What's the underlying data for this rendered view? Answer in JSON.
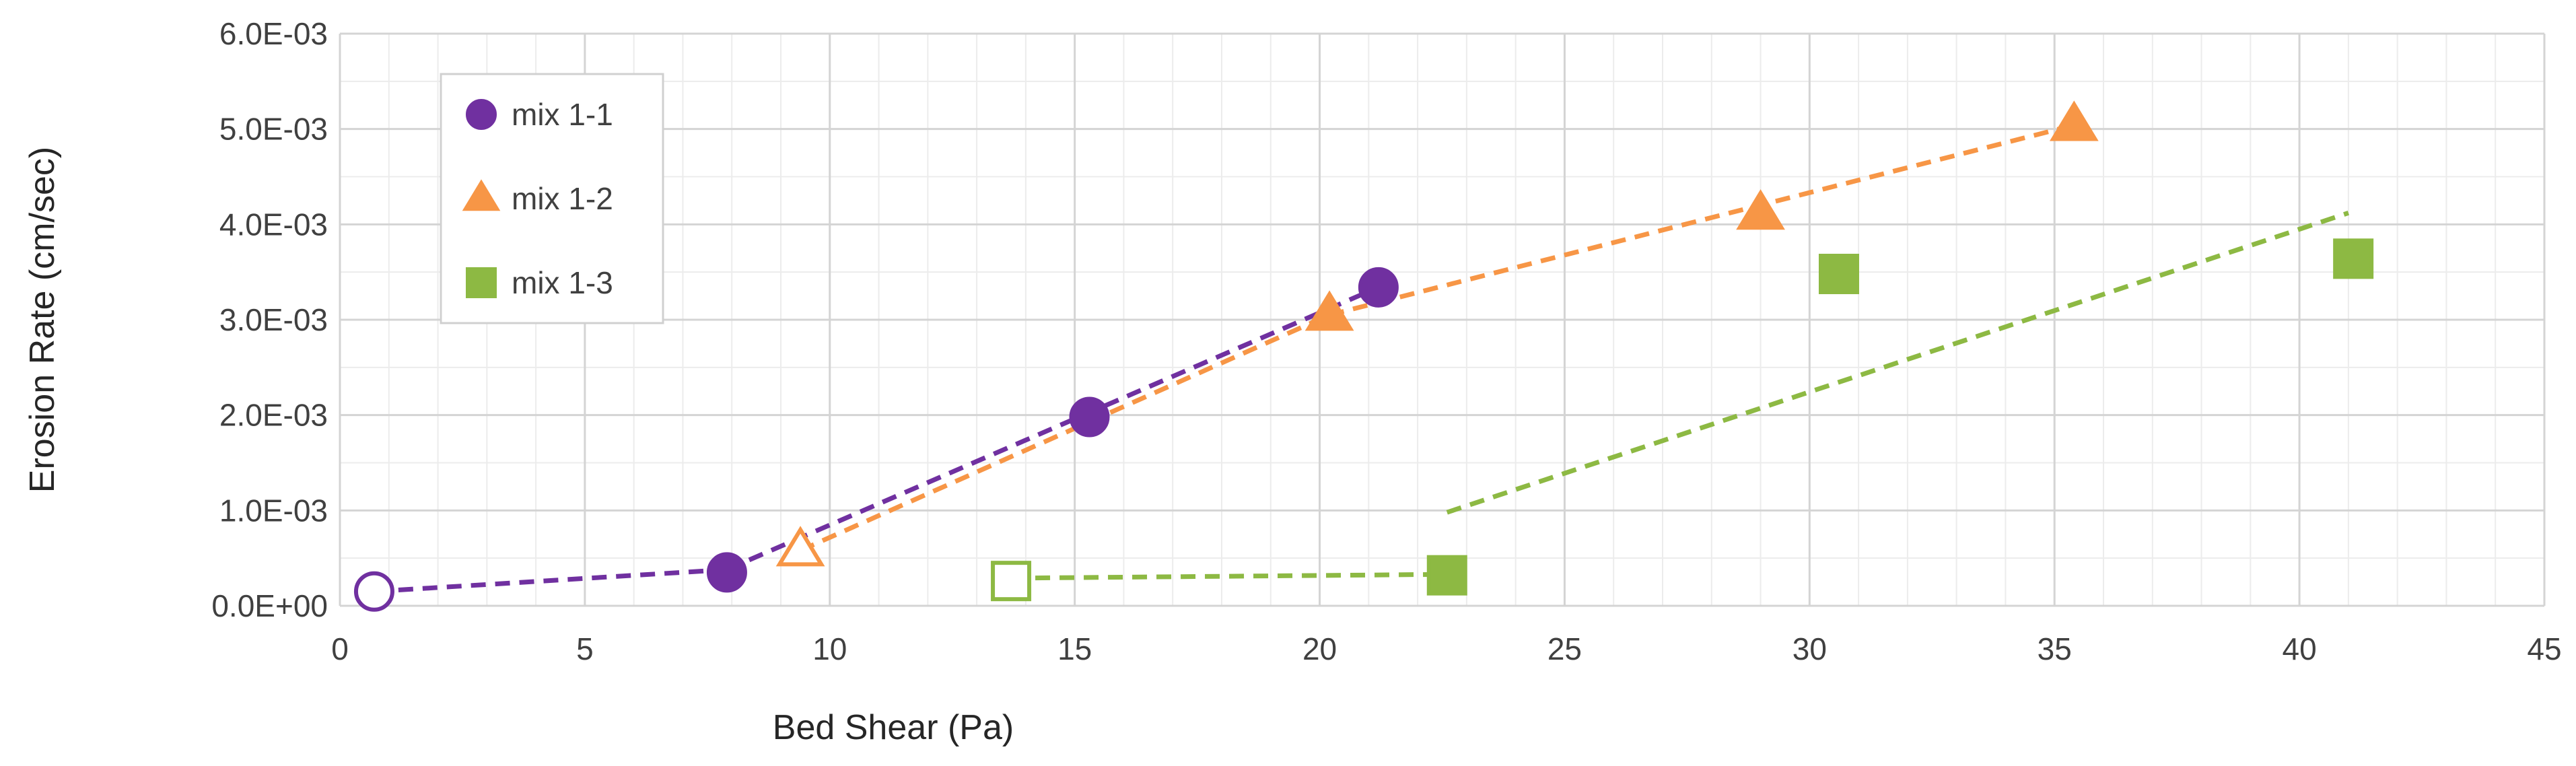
{
  "chart_data": {
    "type": "scatter",
    "title": "",
    "xlabel": "Bed Shear (Pa)",
    "ylabel": "Erosion Rate (cm/sec)",
    "xlim": [
      0,
      45
    ],
    "ylim": [
      0,
      0.006
    ],
    "x_ticks": [
      0,
      5,
      10,
      15,
      20,
      25,
      30,
      35,
      40,
      45
    ],
    "x_tick_labels": [
      "0",
      "5",
      "10",
      "15",
      "20",
      "25",
      "30",
      "35",
      "40",
      "45"
    ],
    "y_ticks": [
      0,
      0.001,
      0.002,
      0.003,
      0.004,
      0.005,
      0.006
    ],
    "y_tick_labels": [
      "0.0E+00",
      "1.0E-03",
      "2.0E-03",
      "3.0E-03",
      "4.0E-03",
      "5.0E-03",
      "6.0E-03"
    ],
    "grid": true,
    "minor_grid": true,
    "legend_position": "top-left",
    "series": [
      {
        "name": "mix 1-1",
        "marker": "circle",
        "color": "#7030A0",
        "points": [
          {
            "x": 0.7,
            "y": 0.00015,
            "filled": false
          },
          {
            "x": 7.9,
            "y": 0.00035,
            "filled": true
          },
          {
            "x": 15.3,
            "y": 0.00198,
            "filled": true
          },
          {
            "x": 21.2,
            "y": 0.00334,
            "filled": true
          }
        ],
        "trend_segments": [
          [
            [
              0.7,
              0.00015
            ],
            [
              7.9,
              0.00038
            ]
          ],
          [
            [
              7.9,
              0.00038
            ],
            [
              21.2,
              0.00334
            ]
          ]
        ]
      },
      {
        "name": "mix 1-2",
        "marker": "triangle",
        "color": "#F79646",
        "points": [
          {
            "x": 9.4,
            "y": 0.00058,
            "filled": false
          },
          {
            "x": 20.2,
            "y": 0.00305,
            "filled": true
          },
          {
            "x": 29.0,
            "y": 0.00411,
            "filled": true
          },
          {
            "x": 35.4,
            "y": 0.00504,
            "filled": true
          }
        ],
        "trend_segments": [
          [
            [
              9.4,
              0.00058
            ],
            [
              20.2,
              0.00305
            ]
          ],
          [
            [
              20.2,
              0.00305
            ],
            [
              35.4,
              0.00504
            ]
          ]
        ]
      },
      {
        "name": "mix 1-3",
        "marker": "square",
        "color": "#8DB943",
        "points": [
          {
            "x": 13.7,
            "y": 0.00026,
            "filled": false
          },
          {
            "x": 22.6,
            "y": 0.00032,
            "filled": true
          },
          {
            "x": 30.6,
            "y": 0.00348,
            "filled": true
          },
          {
            "x": 41.1,
            "y": 0.00364,
            "filled": true
          }
        ],
        "trend_segments": [
          [
            [
              13.7,
              0.00029
            ],
            [
              22.6,
              0.00033
            ]
          ],
          [
            [
              22.6,
              0.00098
            ],
            [
              41.0,
              0.00412
            ]
          ]
        ]
      }
    ]
  }
}
